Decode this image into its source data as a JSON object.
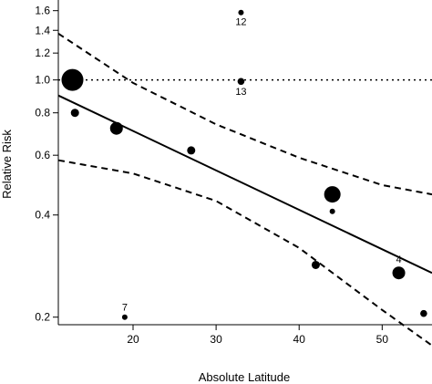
{
  "chart_data": {
    "type": "scatter",
    "title": "",
    "xlabel": "Absolute Latitude",
    "ylabel": "Relative Risk",
    "y_scale": "log",
    "xlim": [
      11,
      56
    ],
    "ylim": [
      0.19,
      1.72
    ],
    "x_ticks": [
      20,
      30,
      40,
      50
    ],
    "y_ticks": [
      0.2,
      0.4,
      0.6,
      0.8,
      1.0,
      1.2,
      1.4,
      1.6
    ],
    "y_tick_labels": [
      "0.2",
      "0.4",
      "0.6",
      "0.8",
      "1.0",
      "1.2",
      "1.4",
      "1.6"
    ],
    "grid": false,
    "reference_line": {
      "y": 1.0,
      "style": "dotted"
    },
    "points": [
      {
        "x": 12.7,
        "y": 1.0,
        "weight": 5
      },
      {
        "x": 13.0,
        "y": 0.8,
        "weight": 2
      },
      {
        "x": 18.0,
        "y": 0.72,
        "weight": 3
      },
      {
        "x": 19.0,
        "y": 0.2,
        "weight": 1,
        "label": "7"
      },
      {
        "x": 27.0,
        "y": 0.62,
        "weight": 2
      },
      {
        "x": 33.0,
        "y": 1.58,
        "weight": 1,
        "label": "12"
      },
      {
        "x": 33.0,
        "y": 0.99,
        "weight": 1.5,
        "label": "13"
      },
      {
        "x": 42.0,
        "y": 0.285,
        "weight": 2
      },
      {
        "x": 44.0,
        "y": 0.46,
        "weight": 4
      },
      {
        "x": 44.0,
        "y": 0.41,
        "weight": 1
      },
      {
        "x": 52.0,
        "y": 0.27,
        "weight": 3,
        "label": "4"
      },
      {
        "x": 55.0,
        "y": 0.205,
        "weight": 1.5
      }
    ],
    "fit_line": {
      "x": [
        11,
        56
      ],
      "y": [
        0.9,
        0.27
      ]
    },
    "confidence_band": {
      "upper": {
        "x": [
          11,
          20,
          30,
          40,
          50,
          56
        ],
        "y": [
          1.37,
          0.98,
          0.74,
          0.59,
          0.49,
          0.46
        ]
      },
      "lower": {
        "x": [
          11,
          20,
          30,
          40,
          50,
          56
        ],
        "y": [
          0.58,
          0.53,
          0.44,
          0.32,
          0.21,
          0.165
        ]
      }
    }
  }
}
